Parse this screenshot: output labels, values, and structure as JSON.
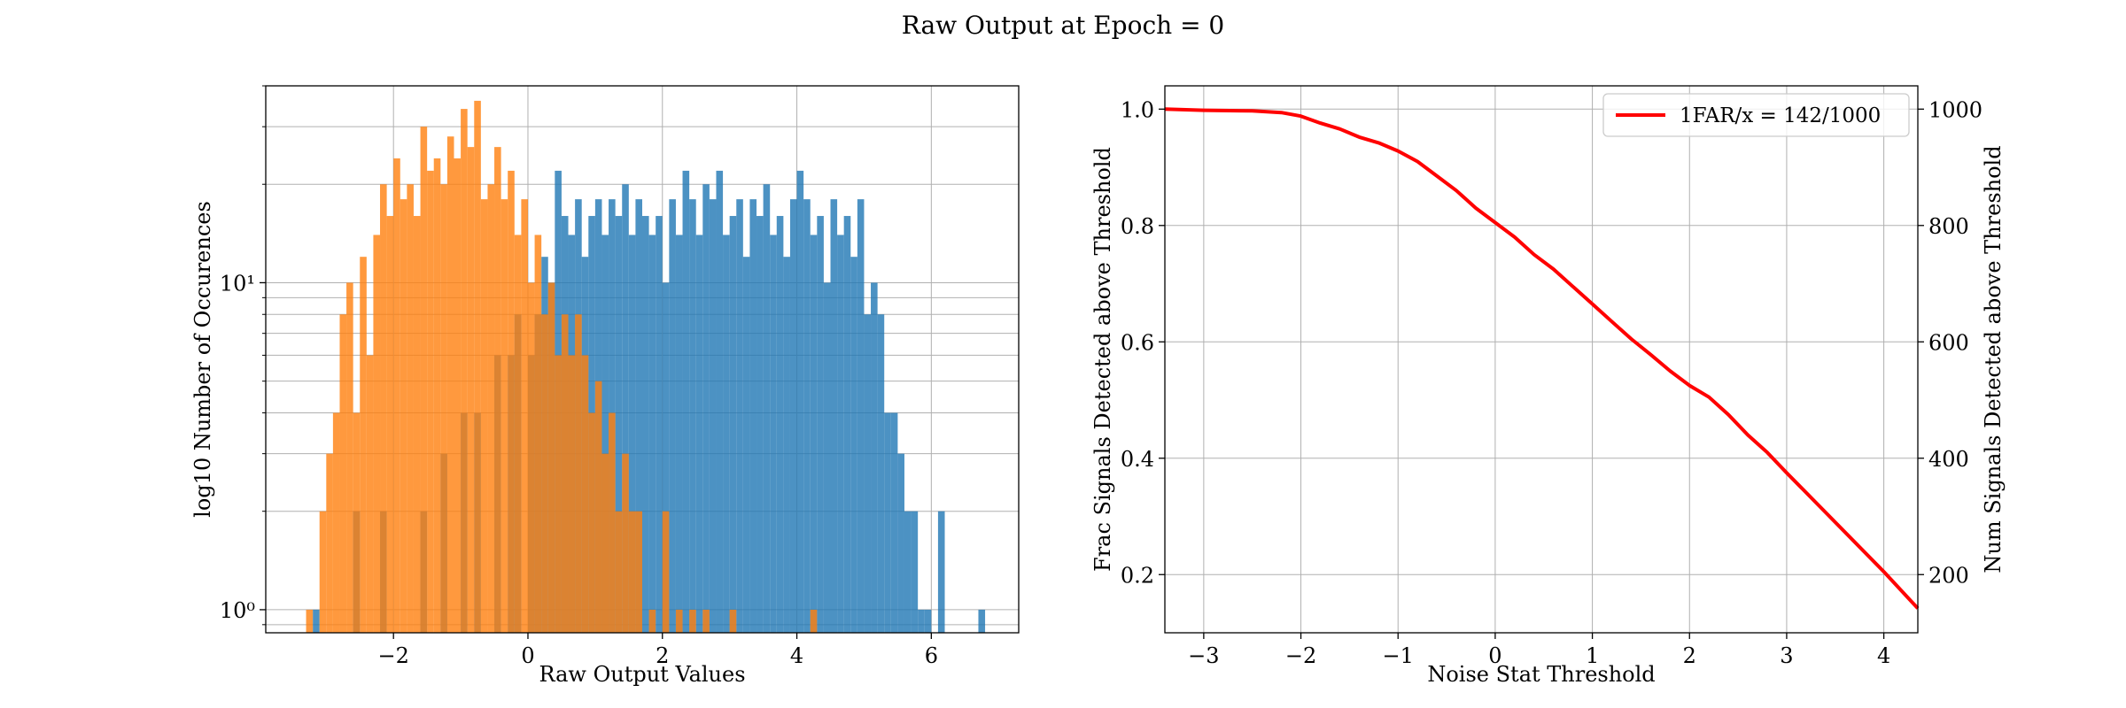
{
  "figure": {
    "title": "Raw Output at Epoch = 0"
  },
  "colors": {
    "signal": "#1f77b4",
    "noise": "#ff7f0e",
    "curve": "#ff0000",
    "grid": "#b0b0b0"
  },
  "chart_data": [
    {
      "type": "histogram",
      "title": "",
      "xlabel": "Raw Output Values",
      "ylabel": "log10 Number of Occurences",
      "xlim": [
        -3.9,
        7.3
      ],
      "ylim": [
        0.85,
        40
      ],
      "y_scale": "log",
      "grid": true,
      "xticks": [
        -2,
        0,
        2,
        4,
        6
      ],
      "xtick_labels": [
        "−2",
        "0",
        "2",
        "4",
        "6"
      ],
      "yticks": [
        1,
        10
      ],
      "ytick_labels": [
        "10⁰",
        "10¹"
      ],
      "bin_width": 0.1,
      "series": [
        {
          "color": "#1f77b4",
          "alpha": 0.8,
          "bins": [
            [
              -3.2,
              1
            ],
            [
              -2.6,
              2
            ],
            [
              -2.2,
              2
            ],
            [
              -1.6,
              2
            ],
            [
              -1.3,
              3
            ],
            [
              -1.0,
              4
            ],
            [
              -0.8,
              4
            ],
            [
              -0.5,
              6
            ],
            [
              -0.3,
              6
            ],
            [
              -0.2,
              8
            ],
            [
              0.0,
              6
            ],
            [
              0.1,
              8
            ],
            [
              0.2,
              12
            ],
            [
              0.3,
              10
            ],
            [
              0.4,
              22
            ],
            [
              0.5,
              16
            ],
            [
              0.6,
              14
            ],
            [
              0.7,
              18
            ],
            [
              0.8,
              12
            ],
            [
              0.9,
              16
            ],
            [
              1.0,
              18
            ],
            [
              1.1,
              14
            ],
            [
              1.2,
              18
            ],
            [
              1.3,
              16
            ],
            [
              1.4,
              20
            ],
            [
              1.5,
              14
            ],
            [
              1.6,
              18
            ],
            [
              1.7,
              16
            ],
            [
              1.8,
              14
            ],
            [
              1.9,
              16
            ],
            [
              2.0,
              10
            ],
            [
              2.1,
              18
            ],
            [
              2.2,
              14
            ],
            [
              2.3,
              22
            ],
            [
              2.4,
              18
            ],
            [
              2.5,
              14
            ],
            [
              2.6,
              20
            ],
            [
              2.7,
              18
            ],
            [
              2.8,
              22
            ],
            [
              2.9,
              14
            ],
            [
              3.0,
              16
            ],
            [
              3.1,
              18
            ],
            [
              3.2,
              12
            ],
            [
              3.3,
              18
            ],
            [
              3.4,
              16
            ],
            [
              3.5,
              20
            ],
            [
              3.6,
              14
            ],
            [
              3.7,
              16
            ],
            [
              3.8,
              12
            ],
            [
              3.9,
              18
            ],
            [
              4.0,
              22
            ],
            [
              4.1,
              18
            ],
            [
              4.2,
              14
            ],
            [
              4.3,
              16
            ],
            [
              4.4,
              10
            ],
            [
              4.5,
              18
            ],
            [
              4.6,
              14
            ],
            [
              4.7,
              16
            ],
            [
              4.8,
              12
            ],
            [
              4.9,
              18
            ],
            [
              5.0,
              8
            ],
            [
              5.1,
              10
            ],
            [
              5.2,
              8
            ],
            [
              5.3,
              4
            ],
            [
              5.4,
              4
            ],
            [
              5.5,
              3
            ],
            [
              5.6,
              2
            ],
            [
              5.7,
              2
            ],
            [
              5.8,
              1
            ],
            [
              5.9,
              1
            ],
            [
              6.1,
              2
            ],
            [
              6.7,
              1
            ]
          ]
        },
        {
          "color": "#ff7f0e",
          "alpha": 0.8,
          "bins": [
            [
              -3.3,
              1
            ],
            [
              -3.1,
              2
            ],
            [
              -3.0,
              3
            ],
            [
              -2.9,
              4
            ],
            [
              -2.8,
              8
            ],
            [
              -2.7,
              10
            ],
            [
              -2.6,
              4
            ],
            [
              -2.5,
              12
            ],
            [
              -2.4,
              6
            ],
            [
              -2.3,
              14
            ],
            [
              -2.2,
              20
            ],
            [
              -2.1,
              16
            ],
            [
              -2.0,
              24
            ],
            [
              -1.9,
              18
            ],
            [
              -1.8,
              20
            ],
            [
              -1.7,
              16
            ],
            [
              -1.6,
              30
            ],
            [
              -1.5,
              22
            ],
            [
              -1.4,
              24
            ],
            [
              -1.3,
              20
            ],
            [
              -1.2,
              28
            ],
            [
              -1.1,
              24
            ],
            [
              -1.0,
              34
            ],
            [
              -0.9,
              26
            ],
            [
              -0.8,
              36
            ],
            [
              -0.7,
              18
            ],
            [
              -0.6,
              20
            ],
            [
              -0.5,
              26
            ],
            [
              -0.4,
              18
            ],
            [
              -0.3,
              22
            ],
            [
              -0.2,
              14
            ],
            [
              -0.1,
              18
            ],
            [
              0.0,
              10
            ],
            [
              0.1,
              14
            ],
            [
              0.2,
              8
            ],
            [
              0.3,
              10
            ],
            [
              0.4,
              6
            ],
            [
              0.5,
              8
            ],
            [
              0.6,
              6
            ],
            [
              0.7,
              8
            ],
            [
              0.8,
              6
            ],
            [
              0.9,
              4
            ],
            [
              1.0,
              5
            ],
            [
              1.1,
              3
            ],
            [
              1.2,
              4
            ],
            [
              1.3,
              2
            ],
            [
              1.4,
              3
            ],
            [
              1.5,
              2
            ],
            [
              1.6,
              2
            ],
            [
              1.8,
              1
            ],
            [
              2.0,
              2
            ],
            [
              2.2,
              1
            ],
            [
              2.4,
              1
            ],
            [
              2.6,
              1
            ],
            [
              3.0,
              1
            ],
            [
              4.2,
              1
            ]
          ]
        }
      ]
    },
    {
      "type": "line",
      "title": "",
      "xlabel": "Noise Stat Threshold",
      "ylabel": "Frac Signals Detected above Threshold",
      "ylabel_right": "Num Signals Detected above Threshold",
      "xlim": [
        -3.4,
        4.35
      ],
      "ylim": [
        0.1,
        1.04
      ],
      "ylim_right": [
        100,
        1040
      ],
      "grid": true,
      "xticks": [
        -3,
        -2,
        -1,
        0,
        1,
        2,
        3,
        4
      ],
      "xtick_labels": [
        "−3",
        "−2",
        "−1",
        "0",
        "1",
        "2",
        "3",
        "4"
      ],
      "yticks": [
        0.2,
        0.4,
        0.6,
        0.8,
        1.0
      ],
      "ytick_labels": [
        "0.2",
        "0.4",
        "0.6",
        "0.8",
        "1.0"
      ],
      "yticks_right": [
        200,
        400,
        600,
        800,
        1000
      ],
      "ytick_labels_right": [
        "200",
        "400",
        "600",
        "800",
        "1000"
      ],
      "legend_position": "upper right",
      "series": [
        {
          "name": "1FAR/x = 142/1000",
          "color": "#ff0000",
          "x": [
            -3.4,
            -3.0,
            -2.5,
            -2.2,
            -2.0,
            -1.8,
            -1.6,
            -1.4,
            -1.2,
            -1.0,
            -0.8,
            -0.6,
            -0.4,
            -0.2,
            0.0,
            0.2,
            0.4,
            0.6,
            0.8,
            1.0,
            1.2,
            1.4,
            1.6,
            1.8,
            2.0,
            2.2,
            2.4,
            2.6,
            2.8,
            3.0,
            3.5,
            4.0,
            4.35
          ],
          "y": [
            1.0,
            0.998,
            0.997,
            0.994,
            0.988,
            0.976,
            0.966,
            0.952,
            0.942,
            0.928,
            0.91,
            0.885,
            0.86,
            0.83,
            0.805,
            0.78,
            0.75,
            0.725,
            0.695,
            0.665,
            0.635,
            0.605,
            0.578,
            0.55,
            0.525,
            0.505,
            0.475,
            0.44,
            0.41,
            0.375,
            0.29,
            0.205,
            0.142
          ]
        }
      ]
    }
  ]
}
